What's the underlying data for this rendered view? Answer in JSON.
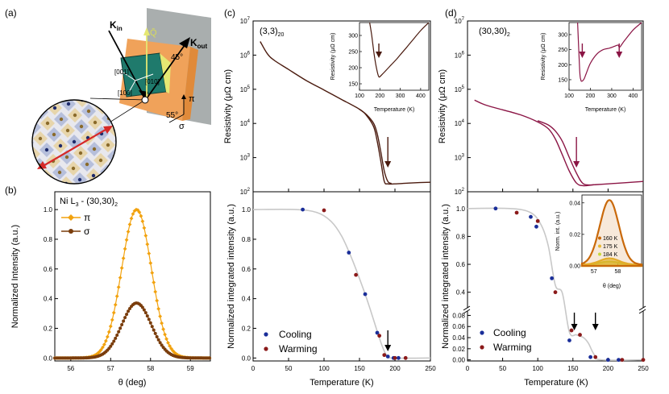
{
  "colors": {
    "pi": "#f2a20e",
    "sigma": "#7a3d0c",
    "c_curve": "#4a1a0e",
    "d_curve": "#8b1545",
    "cooling": "#1a2e99",
    "warming": "#8b1a1a",
    "fit": "#c8c8c8",
    "beam": "#d62828",
    "plane": "#9aa0a0",
    "crystal": "#1f7a6c",
    "orange": "#f0a25a"
  },
  "panel_a": {
    "label": "(a)",
    "k_in": "K",
    "k_in_sub": "in",
    "k_out": "K",
    "k_out_sub": "out",
    "q_vec": "Q̄",
    "angle_45": "45°",
    "angle_55": "55°",
    "dir_001": "[001]",
    "dir_010": "[010]",
    "dir_100": "[100]",
    "pi_sym": "π",
    "sigma_sym": "σ"
  },
  "chart_data": [
    {
      "id": "b",
      "type": "line",
      "label": "(b)",
      "title": "Ni L",
      "title_sub": "3",
      "title_rest": " - (30,30)",
      "title_rest_sub": "2",
      "xlabel": "θ (deg)",
      "ylabel": "Normalized Intensity (a.u.)",
      "xlim": [
        55.6,
        59.5
      ],
      "ylim": [
        -0.02,
        1.12
      ],
      "xticks": [
        "56",
        "57",
        "58",
        "59"
      ],
      "yticks": [
        "0.0",
        "0.2",
        "0.4",
        "0.6",
        "0.8",
        "1.0"
      ],
      "series": [
        {
          "name": "π",
          "peak": 1.0,
          "center": 57.65,
          "width": 0.37,
          "color": "pi"
        },
        {
          "name": "σ",
          "peak": 0.37,
          "center": 57.65,
          "width": 0.37,
          "color": "sigma"
        }
      ]
    },
    {
      "id": "c_top",
      "type": "line",
      "label": "(c)",
      "title": "(3,3)",
      "title_sub": "20",
      "xlabel": "",
      "ylabel": "Resistivity (μΩ cm)",
      "yscale": "log",
      "xlim": [
        0,
        250
      ],
      "ylim": [
        100,
        10000000
      ],
      "yticks": [
        "10",
        "10",
        "10",
        "10",
        "10",
        "10"
      ],
      "ytick_exp": [
        "2",
        "3",
        "4",
        "5",
        "6",
        "7"
      ],
      "series": [
        {
          "name": "cooling",
          "x": [
            10,
            20,
            30,
            50,
            75,
            100,
            125,
            150,
            160,
            170,
            175,
            180,
            185,
            190,
            200,
            220,
            250
          ],
          "y": [
            2500000,
            1100000,
            700000,
            380000,
            180000,
            95000,
            50000,
            26000,
            17000,
            8000,
            3000,
            800,
            200,
            170,
            170,
            180,
            190
          ]
        },
        {
          "name": "warming",
          "x": [
            150,
            160,
            170,
            175,
            180,
            185,
            190,
            195
          ],
          "y": [
            26000,
            18000,
            10000,
            5000,
            1500,
            400,
            200,
            175
          ]
        }
      ],
      "arrow_x": 190,
      "inset": {
        "xlabel": "Temperature (K)",
        "ylabel": "Resistivity (μΩ cm)",
        "xlim": [
          100,
          440
        ],
        "ylim": [
          130,
          340
        ],
        "xticks": [
          "100",
          "200",
          "300",
          "400"
        ],
        "yticks": [
          "150",
          "200",
          "250",
          "300"
        ],
        "x": [
          150,
          160,
          170,
          180,
          190,
          195,
          200,
          220,
          250,
          280,
          300,
          330,
          360,
          400,
          440
        ],
        "y": [
          340,
          300,
          250,
          210,
          180,
          172,
          172,
          185,
          205,
          225,
          240,
          262,
          285,
          315,
          342
        ],
        "arrow_x": 195
      }
    },
    {
      "id": "c_bottom",
      "type": "scatter",
      "xlabel": "Temperature (K)",
      "ylabel": "Normalized integrated intensity (a.u.)",
      "xlim": [
        0,
        250
      ],
      "ylim": [
        -0.02,
        1.12
      ],
      "xticks": [
        "0",
        "50",
        "100",
        "150",
        "200",
        "250"
      ],
      "yticks": [
        "0.0",
        "0.2",
        "0.4",
        "0.6",
        "0.8",
        "1.0"
      ],
      "cooling": {
        "name": "Cooling",
        "x": [
          70,
          135,
          158,
          175,
          190,
          198,
          205
        ],
        "y": [
          1.0,
          0.71,
          0.43,
          0.17,
          0.01,
          0.0,
          0.0
        ]
      },
      "warming": {
        "name": "Warming",
        "x": [
          100,
          145,
          178,
          185,
          200,
          215
        ],
        "y": [
          0.995,
          0.56,
          0.15,
          0.02,
          0.0,
          0.0
        ]
      },
      "fit_x": [
        0,
        60,
        90,
        110,
        125,
        140,
        155,
        165,
        175,
        182,
        188,
        195,
        250
      ],
      "fit_y": [
        1.0,
        1.0,
        0.98,
        0.92,
        0.82,
        0.66,
        0.47,
        0.33,
        0.18,
        0.08,
        0.02,
        0.0,
        0.0
      ],
      "arrow_x": 190
    },
    {
      "id": "d_top",
      "type": "line",
      "label": "(d)",
      "title": "(30,30)",
      "title_sub": "2",
      "xlabel": "",
      "ylabel": "Resistivity (μΩ cm)",
      "yscale": "log",
      "xlim": [
        0,
        250
      ],
      "ylim": [
        100,
        10000000
      ],
      "yticks": [
        "10",
        "10",
        "10",
        "10",
        "10",
        "10"
      ],
      "ytick_exp": [
        "2",
        "3",
        "4",
        "5",
        "6",
        "7"
      ],
      "series": [
        {
          "name": "cooling",
          "x": [
            10,
            25,
            50,
            75,
            100,
            115,
            125,
            135,
            145,
            155,
            165,
            180,
            200,
            250
          ],
          "y": [
            48000,
            35000,
            25000,
            18000,
            11000,
            7000,
            3500,
            1200,
            400,
            180,
            150,
            160,
            170,
            200
          ]
        },
        {
          "name": "warming",
          "x": [
            100,
            115,
            125,
            135,
            145,
            155,
            165,
            180
          ],
          "y": [
            12000,
            9000,
            6000,
            3000,
            1000,
            350,
            170,
            160
          ]
        }
      ],
      "arrow_x": 155,
      "inset": {
        "xlabel": "Temperature (K)",
        "ylabel": "Resistivity (μΩ cm)",
        "xlim": [
          100,
          440
        ],
        "ylim": [
          115,
          340
        ],
        "xticks": [
          "100",
          "200",
          "300",
          "400"
        ],
        "yticks": [
          "150",
          "200",
          "250",
          "300"
        ],
        "x": [
          140,
          150,
          155,
          160,
          170,
          180,
          200,
          230,
          260,
          290,
          320,
          330,
          335,
          340,
          360,
          400,
          440
        ],
        "y": [
          340,
          180,
          150,
          145,
          152,
          170,
          205,
          235,
          250,
          255,
          263,
          265,
          258,
          260,
          280,
          315,
          345
        ],
        "arrow_x": [
          162,
          335
        ]
      }
    },
    {
      "id": "d_bottom",
      "type": "scatter",
      "xlabel": "Temperature (K)",
      "ylabel": "Normalized integrated intensity (a.u.)",
      "xlim": [
        0,
        250
      ],
      "xticks": [
        "0",
        "50",
        "100",
        "150",
        "200",
        "250"
      ],
      "yticks_upper": [
        "0.4",
        "0.6",
        "0.8",
        "1.0"
      ],
      "yticks_lower": [
        "0.00",
        "0.02",
        "0.04",
        "0.06",
        "0.08"
      ],
      "cooling": {
        "name": "Cooling",
        "x": [
          40,
          90,
          98,
          120,
          145,
          175,
          200,
          215
        ],
        "y": [
          1.0,
          0.94,
          0.87,
          0.5,
          0.035,
          0.005,
          0.0,
          0.0
        ]
      },
      "warming": {
        "name": "Warming",
        "x": [
          70,
          100,
          125,
          148,
          160,
          182,
          220,
          250
        ],
        "y": [
          0.97,
          0.91,
          0.4,
          0.053,
          0.045,
          0.005,
          0.0,
          0.0
        ]
      },
      "fit_x": [
        0,
        60,
        90,
        105,
        115,
        125,
        135,
        145,
        155,
        165,
        172,
        180,
        190,
        250
      ],
      "fit_y": [
        1.0,
        1.0,
        0.97,
        0.88,
        0.73,
        0.45,
        0.12,
        0.05,
        0.045,
        0.04,
        0.03,
        0.01,
        0.0,
        0.0
      ],
      "arrows_x": [
        152,
        182
      ],
      "inset": {
        "xlabel": "θ (deg)",
        "ylabel": "Norm. int. (a.u.)",
        "xlim": [
          56.5,
          59.0
        ],
        "ylim": [
          0,
          0.045
        ],
        "xticks": [
          "57",
          "58"
        ],
        "yticks": [
          "0.00",
          "0.02",
          "0.04"
        ],
        "series": [
          {
            "name": "160 K",
            "peak": 0.041,
            "color": "#c9690a"
          },
          {
            "name": "175 K",
            "peak": 0.004,
            "color": "#e8b830"
          },
          {
            "name": "184 K",
            "peak": 0.002,
            "color": "#c8d83a"
          }
        ]
      }
    }
  ]
}
